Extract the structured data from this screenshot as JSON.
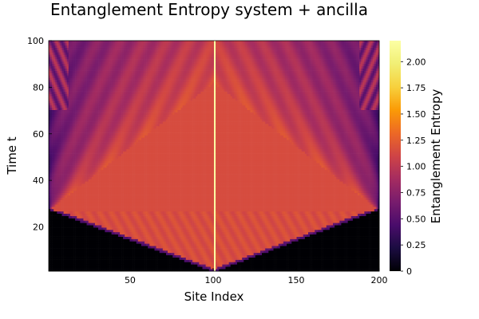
{
  "chart_data": {
    "type": "heatmap",
    "title": "Entanglement Entropy system + ancilla",
    "xlabel": "Site Index",
    "ylabel": "Time t",
    "colorbar_label": "Entanglement Entropy",
    "xlim": [
      1,
      200
    ],
    "ylim": [
      1,
      100
    ],
    "x_ticks": [
      50,
      100,
      150,
      200
    ],
    "y_ticks": [
      20,
      40,
      60,
      80,
      100
    ],
    "colorbar_ticks": [
      0,
      0.25,
      0.5,
      0.75,
      1.0,
      1.25,
      1.5,
      1.75,
      2.0
    ],
    "colorbar_tick_labels": [
      "0",
      "0.25",
      "0.50",
      "0.75",
      "1.00",
      "1.25",
      "1.50",
      "1.75",
      "2.00"
    ],
    "colorbar_range": [
      0,
      2.2
    ],
    "colormap": "inferno",
    "grid": false,
    "n_sites": 200,
    "n_times": 100,
    "light_cone_center_site": 100,
    "light_cone_apex_time": 1,
    "boundary_reflection_time": 27,
    "value_outside_light_cone": 0.0,
    "value_inside_light_cone": 1.15,
    "value_center_line": 2.2,
    "value_edge_after_reflection": 0.4,
    "colors": {
      "low": "#000004",
      "purple": "#420a68",
      "magenta": "#932667",
      "red_orange": "#dd513a",
      "orange": "#fca50a",
      "high": "#fcffa4"
    }
  }
}
